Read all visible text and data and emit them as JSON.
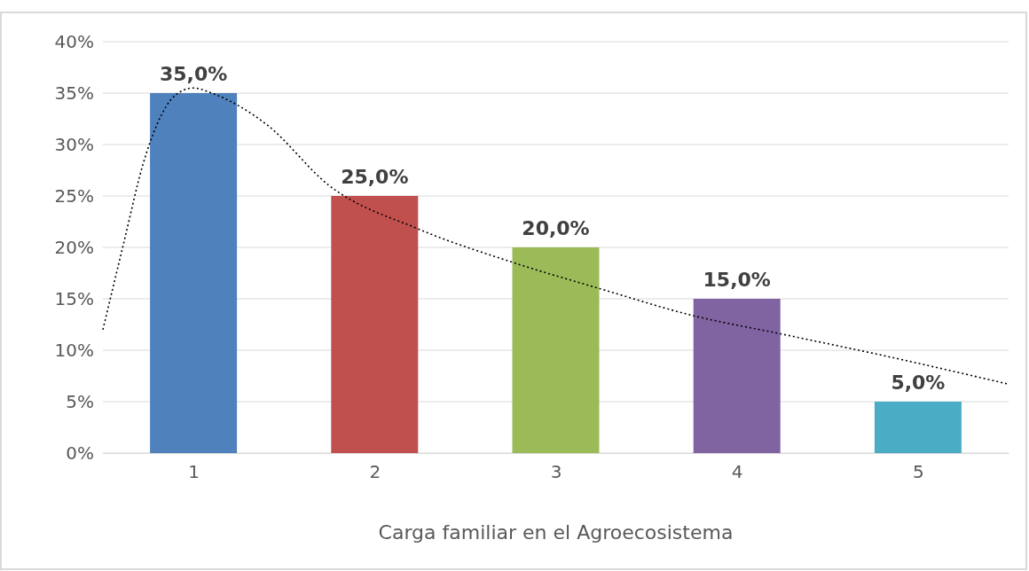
{
  "chart_data": {
    "type": "bar",
    "xlabel": "Carga familiar en el Agroecosistema",
    "x": [
      1,
      2,
      3,
      4,
      5
    ],
    "xlim": [
      0.5,
      5.5
    ],
    "xticks": [
      1,
      2,
      3,
      4,
      5
    ],
    "ylim": [
      0,
      40
    ],
    "yticks": [
      {
        "value": 0,
        "label": "0%"
      },
      {
        "value": 5,
        "label": "5%"
      },
      {
        "value": 10,
        "label": "10%"
      },
      {
        "value": 15,
        "label": "15%"
      },
      {
        "value": 20,
        "label": "20%"
      },
      {
        "value": 25,
        "label": "25%"
      },
      {
        "value": 30,
        "label": "30%"
      },
      {
        "value": 35,
        "label": "35%"
      },
      {
        "value": 40,
        "label": "40%"
      }
    ],
    "grid": "y",
    "series": [
      {
        "values": [
          35,
          25,
          20,
          15,
          5
        ],
        "colors": [
          "#4f81bd",
          "#c0504d",
          "#9bbb59",
          "#8064a2",
          "#4bacc6"
        ],
        "value_labels": [
          "35,0%",
          "25,0%",
          "20,0%",
          "15,0%",
          "5,0%"
        ]
      },
      {
        "type": "line",
        "color": "#000000",
        "line_style": "dotted",
        "marker": "none",
        "x": [
          0.5,
          0.62,
          0.72,
          0.8,
          0.9,
          1.0,
          1.1,
          1.4,
          1.75,
          2.24,
          2.77,
          3.26,
          3.75,
          4.24,
          4.83,
          5.5
        ],
        "values": [
          12,
          20.8,
          28,
          32,
          34.8,
          35.5,
          35,
          32,
          26,
          21.8,
          18.5,
          15.9,
          13.4,
          11.6,
          9.4,
          6.7
        ]
      }
    ]
  }
}
